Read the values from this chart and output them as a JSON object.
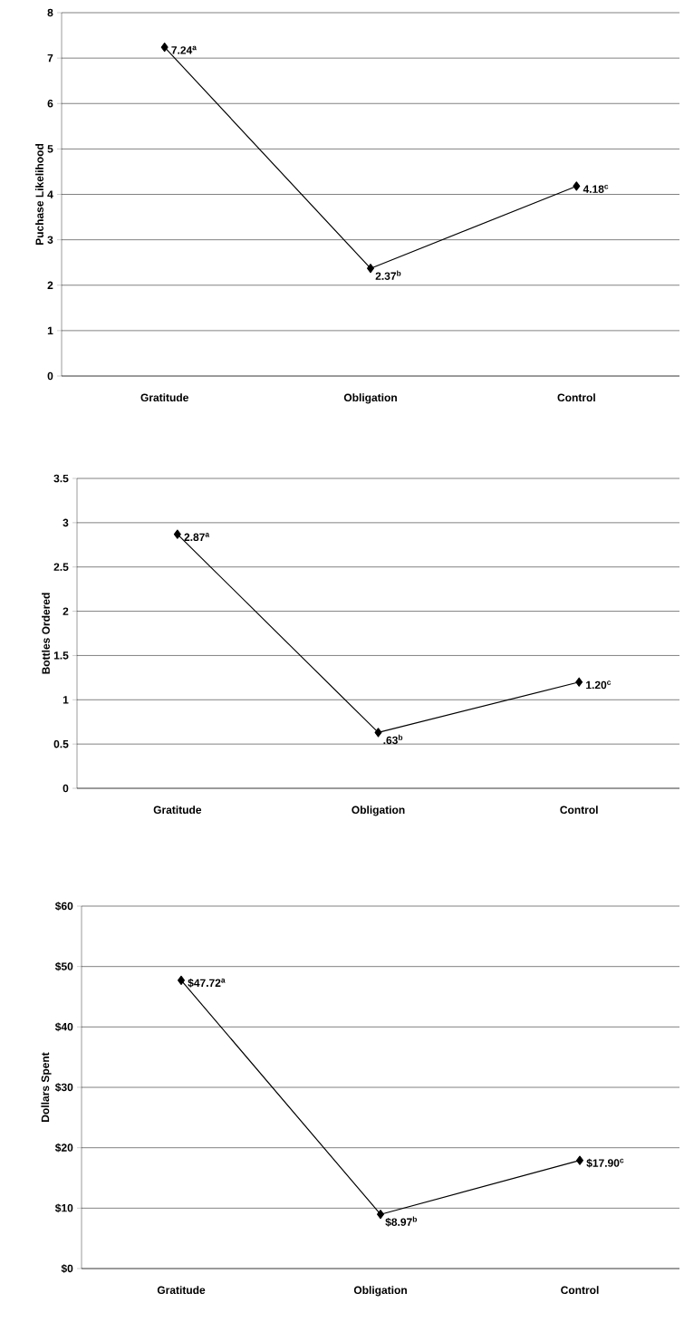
{
  "chart_data": [
    {
      "type": "line",
      "categories": [
        "Gratitude",
        "Obligation",
        "Control"
      ],
      "values": [
        7.24,
        2.37,
        4.18
      ],
      "value_labels": [
        "7.24$^{a}$",
        "2.37$^{b}$",
        "4.18$^{c}$"
      ],
      "ylabel": "Puchase Likelihood",
      "ylim": [
        0,
        8
      ],
      "yticks": [
        0,
        1,
        2,
        3,
        4,
        5,
        6,
        7,
        8
      ],
      "color": "#000000",
      "grid": "y",
      "marker": "diamond"
    },
    {
      "type": "line",
      "categories": [
        "Gratitude",
        "Obligation",
        "Control"
      ],
      "values": [
        2.87,
        0.63,
        1.2
      ],
      "value_labels": [
        "2.87$^{a}$",
        ".63$^{b}$",
        "1.20$^{c}$"
      ],
      "ylabel": "Bottles Ordered",
      "ylim": [
        0,
        3.5
      ],
      "yticks": [
        0,
        0.5,
        1,
        1.5,
        2,
        2.5,
        3,
        3.5
      ],
      "color": "#000000",
      "grid": "y",
      "marker": "diamond"
    },
    {
      "type": "line",
      "categories": [
        "Gratitude",
        "Obligation",
        "Control"
      ],
      "values": [
        47.72,
        8.97,
        17.9
      ],
      "value_labels": [
        "$47.72$^{a}$",
        "$8.97$^{b}$",
        "$17.90$^{c}$"
      ],
      "ylabel": "Dollars Spent",
      "ylim": [
        0,
        60
      ],
      "yticks": [
        {
          "value": 0,
          "label": "$0"
        },
        {
          "value": 10,
          "label": "$10"
        },
        {
          "value": 20,
          "label": "$20"
        },
        {
          "value": 30,
          "label": "$30"
        },
        {
          "value": 40,
          "label": "$40"
        },
        {
          "value": 50,
          "label": "$50"
        },
        {
          "value": 60,
          "label": "$60"
        }
      ],
      "color": "#000000",
      "grid": "y",
      "marker": "diamond"
    }
  ]
}
